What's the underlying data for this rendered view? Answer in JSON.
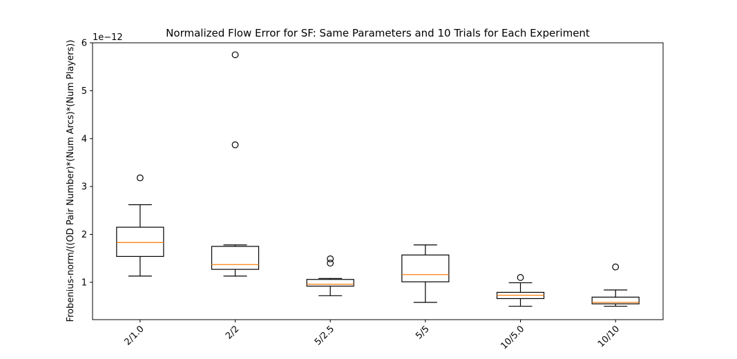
{
  "chart_data": {
    "type": "boxplot",
    "title": "Normalized Flow Error for SF: Same Parameters and 10 Trials for Each Experiment",
    "xlabel": "",
    "ylabel": "Frobenius-norm/((OD Pair Number)*(Num Arcs)*(Num Players))",
    "y_scale_label": "1e−12",
    "ylim": [
      0.22,
      6.0
    ],
    "y_ticks": [
      1,
      2,
      3,
      4,
      5,
      6
    ],
    "y_tick_labels": [
      "1",
      "2",
      "3",
      "4",
      "5",
      "6"
    ],
    "grid": false,
    "categories": [
      "2/1.0",
      "2/2",
      "5/2.5",
      "5/5",
      "10/5.0",
      "10/10"
    ],
    "boxes": [
      {
        "whisker_low": 1.13,
        "q1": 1.54,
        "median": 1.83,
        "q3": 2.15,
        "whisker_high": 2.62,
        "outliers": [
          3.18
        ]
      },
      {
        "whisker_low": 1.13,
        "q1": 1.27,
        "median": 1.37,
        "q3": 1.75,
        "whisker_high": 1.78,
        "outliers": [
          3.87,
          5.75
        ]
      },
      {
        "whisker_low": 0.72,
        "q1": 0.92,
        "median": 0.96,
        "q3": 1.06,
        "whisker_high": 1.08,
        "outliers": [
          1.4,
          1.49
        ]
      },
      {
        "whisker_low": 0.58,
        "q1": 1.01,
        "median": 1.16,
        "q3": 1.57,
        "whisker_high": 1.78,
        "outliers": []
      },
      {
        "whisker_low": 0.5,
        "q1": 0.66,
        "median": 0.73,
        "q3": 0.79,
        "whisker_high": 0.99,
        "outliers": [
          1.1
        ]
      },
      {
        "whisker_low": 0.5,
        "q1": 0.55,
        "median": 0.58,
        "q3": 0.69,
        "whisker_high": 0.84,
        "outliers": [
          1.32
        ]
      }
    ],
    "colors": {
      "box": "#000000",
      "median": "#ff7f0e",
      "background": "#ffffff"
    }
  }
}
